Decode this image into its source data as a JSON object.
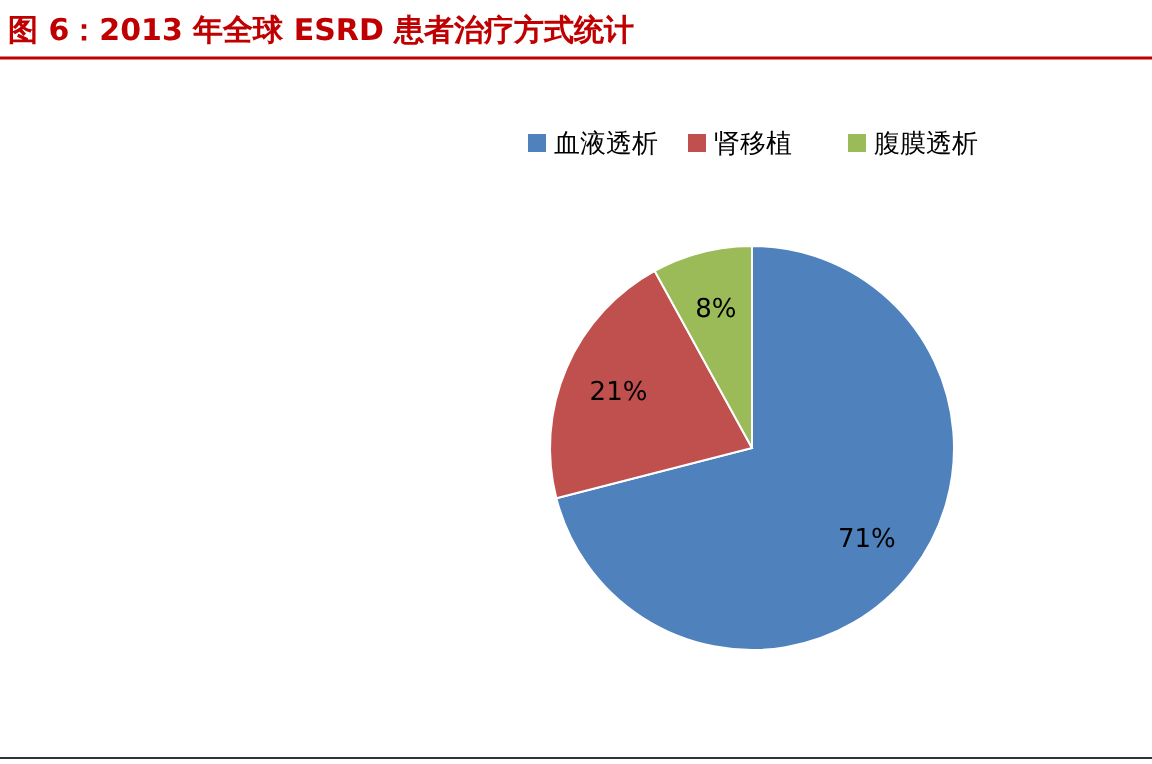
{
  "chart_data": {
    "type": "pie",
    "title": "图 6：2013 年全球 ESRD 患者治疗方式统计",
    "categories": [
      "血液透析",
      "肾移植",
      "腹膜透析"
    ],
    "values": [
      71,
      21,
      8
    ],
    "colors": [
      "#4f81bd",
      "#c0504d",
      "#9bbb59"
    ],
    "value_labels": [
      "71%",
      "21%",
      "8%"
    ],
    "legend": "top"
  }
}
